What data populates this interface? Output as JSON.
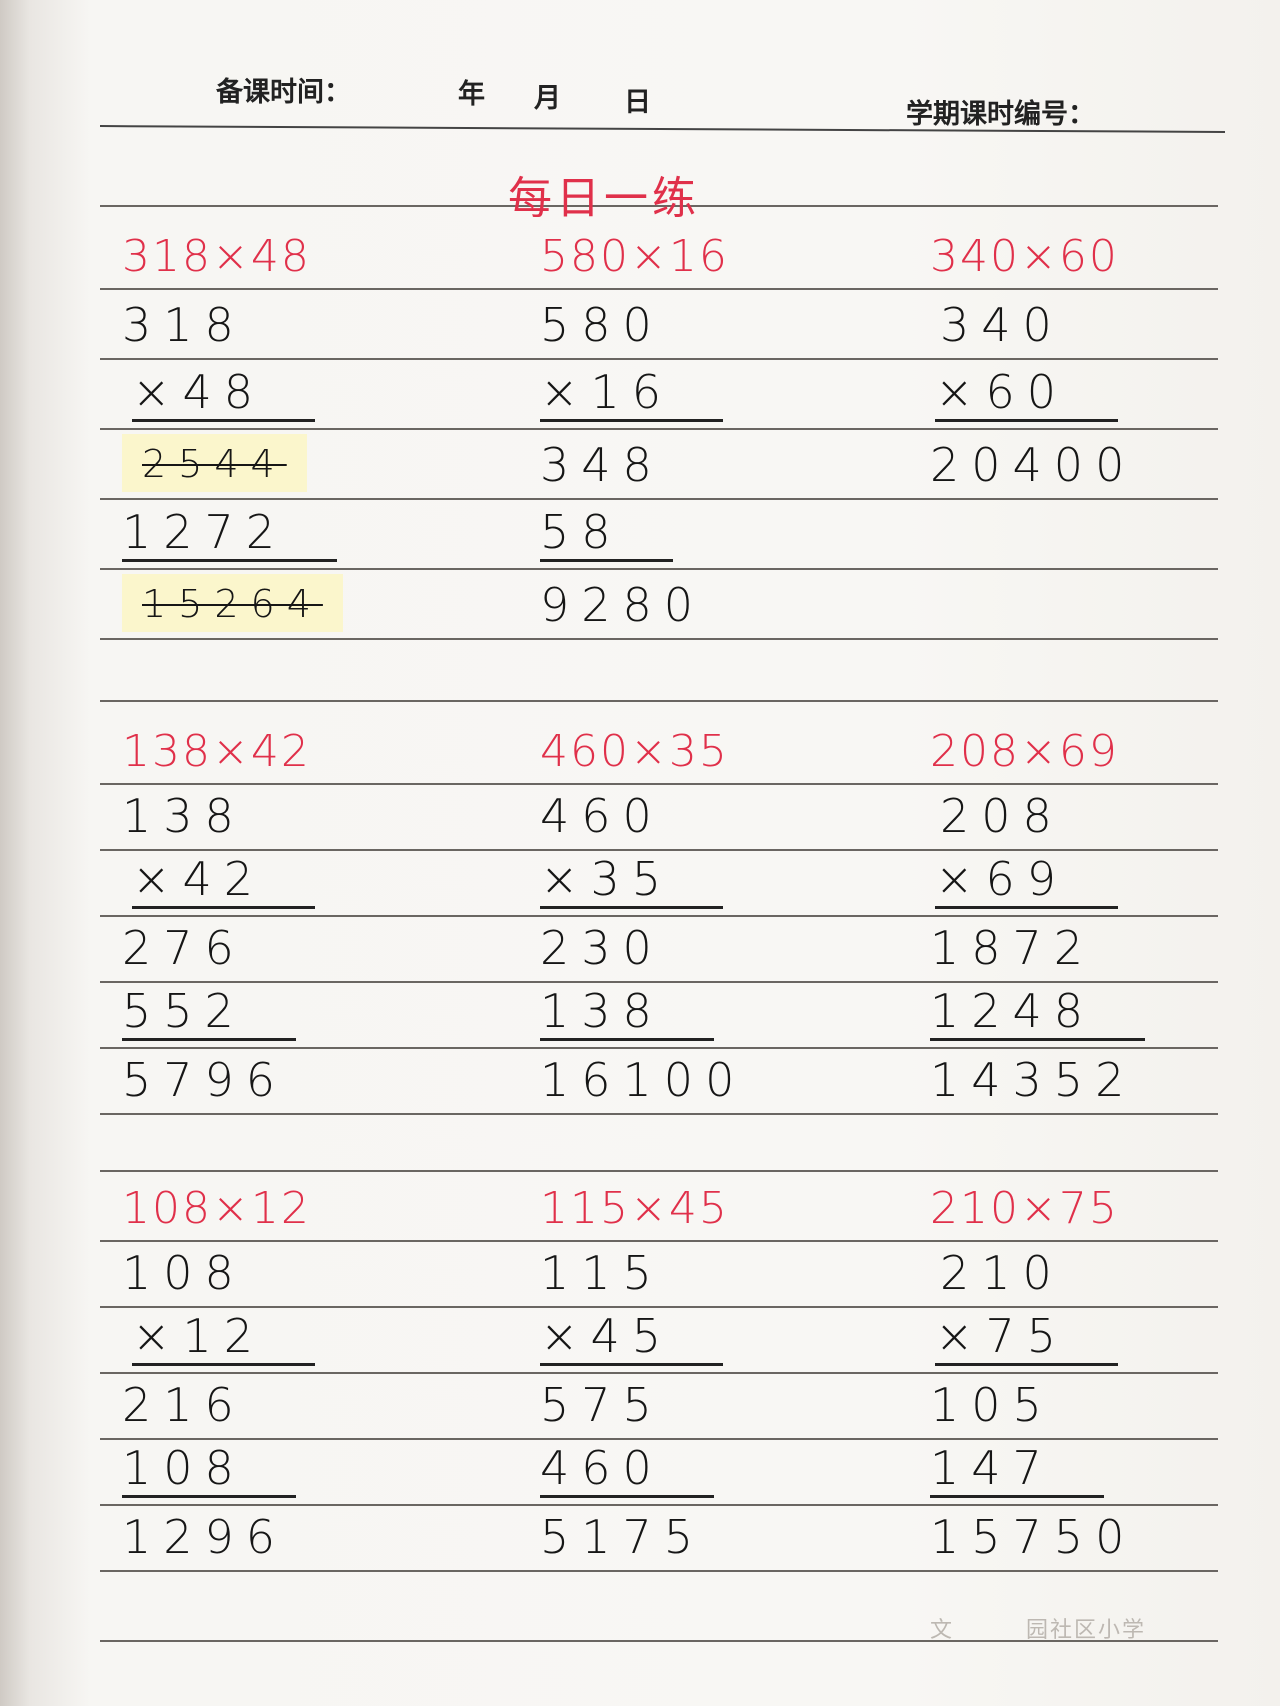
{
  "header": {
    "prep_time_label": "备课时间：",
    "year": "年",
    "month": "月",
    "day": "日",
    "lesson_no_label": "学期课时编号："
  },
  "title": "每日一练",
  "colors": {
    "red_ink": "#e0304a",
    "highlight": "#fbf6cc"
  },
  "blocks": [
    [
      {
        "title": "318×48",
        "lines": [
          {
            "text": "318"
          },
          {
            "text": "×48",
            "rule": true
          },
          {
            "text": "2544",
            "struck": true
          },
          {
            "text": "1272",
            "rule": true
          },
          {
            "text": "15264",
            "struck": true
          }
        ]
      },
      {
        "title": "580×16",
        "lines": [
          {
            "text": "580"
          },
          {
            "text": "×16",
            "rule": true
          },
          {
            "text": "348"
          },
          {
            "text": "58",
            "rule": true
          },
          {
            "text": "9280"
          }
        ]
      },
      {
        "title": "340×60",
        "lines": [
          {
            "text": "340"
          },
          {
            "text": "×60",
            "rule": true
          },
          {
            "text": "20400"
          }
        ]
      }
    ],
    [
      {
        "title": "138×42",
        "lines": [
          {
            "text": "138"
          },
          {
            "text": "×42",
            "rule": true
          },
          {
            "text": "276"
          },
          {
            "text": "552",
            "rule": true
          },
          {
            "text": "5796"
          }
        ]
      },
      {
        "title": "460×35",
        "lines": [
          {
            "text": "460"
          },
          {
            "text": "×35",
            "rule": true
          },
          {
            "text": "230"
          },
          {
            "text": "138",
            "rule": true
          },
          {
            "text": "16100"
          }
        ]
      },
      {
        "title": "208×69",
        "lines": [
          {
            "text": "208"
          },
          {
            "text": "×69",
            "rule": true
          },
          {
            "text": "1872"
          },
          {
            "text": "1248",
            "rule": true
          },
          {
            "text": "14352"
          }
        ]
      }
    ],
    [
      {
        "title": "108×12",
        "lines": [
          {
            "text": "108"
          },
          {
            "text": "×12",
            "rule": true
          },
          {
            "text": "216"
          },
          {
            "text": "108",
            "rule": true
          },
          {
            "text": "1296"
          }
        ]
      },
      {
        "title": "115×45",
        "lines": [
          {
            "text": "115"
          },
          {
            "text": "×45",
            "rule": true
          },
          {
            "text": "575"
          },
          {
            "text": "460",
            "rule": true
          },
          {
            "text": "5175"
          }
        ]
      },
      {
        "title": "210×75",
        "lines": [
          {
            "text": "210"
          },
          {
            "text": "×75",
            "rule": true
          },
          {
            "text": "105"
          },
          {
            "text": "147",
            "rule": true
          },
          {
            "text": "15750"
          }
        ]
      }
    ]
  ],
  "footer_text": "文　　　园社区小学"
}
